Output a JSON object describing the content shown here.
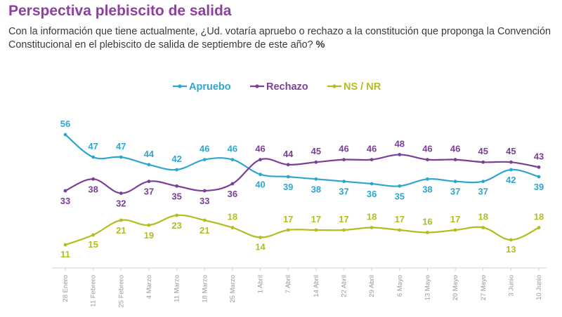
{
  "header": {
    "title": "Perspectiva plebiscito de salida",
    "subtitle": "Con la información que tiene actualmente, ¿Ud. votaría apruebo o rechazo a la constitución que proponga la Convención Constitucional en el plebiscito de salida de septiembre de este año?",
    "subtitle_unit": "%"
  },
  "chart_data": {
    "type": "line",
    "title": "Perspectiva plebiscito de salida",
    "xlabel": "",
    "ylabel": "",
    "ylim": [
      5,
      60
    ],
    "grid": false,
    "legend_position": "top-center",
    "categories": [
      "28 Enero",
      "11 Febrero",
      "25 Febrero",
      "4 Marzo",
      "11 Marzo",
      "18 Marzo",
      "25 Marzo",
      "1 Abril",
      "7 Abril",
      "14 Abril",
      "22 Abril",
      "29 Abril",
      "6 Mayo",
      "13 Mayo",
      "20 Mayo",
      "27 Mayo",
      "3 Junio",
      "10 Junio"
    ],
    "series": [
      {
        "name": "Apruebo",
        "color": "#2ea6cf",
        "values": [
          56,
          47,
          47,
          44,
          42,
          46,
          46,
          40,
          39,
          38,
          37,
          36,
          35,
          38,
          37,
          37,
          42,
          39
        ]
      },
      {
        "name": "Rechazo",
        "color": "#7b3f98",
        "values": [
          33,
          38,
          32,
          37,
          35,
          33,
          36,
          46,
          44,
          45,
          46,
          46,
          48,
          46,
          46,
          45,
          45,
          43
        ]
      },
      {
        "name": "NS / NR",
        "color": "#b3bd1f",
        "values": [
          11,
          15,
          21,
          19,
          23,
          21,
          18,
          14,
          17,
          17,
          17,
          18,
          17,
          16,
          17,
          18,
          13,
          18
        ]
      }
    ]
  }
}
